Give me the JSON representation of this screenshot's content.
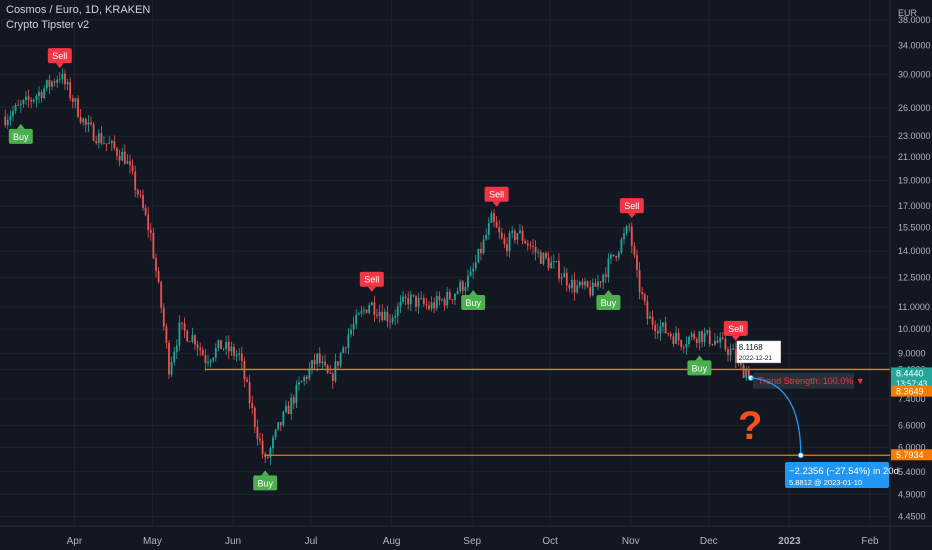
{
  "header": {
    "symbol_line": "Cosmos / Euro, 1D, KRAKEN",
    "indicator_line": "Crypto Tipster v2",
    "currency": "EUR"
  },
  "colors": {
    "background": "#131722",
    "grid": "#1e222d",
    "up": "#26a69a",
    "down": "#ef5350",
    "level_line": "#f57c00",
    "price_tag": "#f57c00",
    "projection": "#2196f3",
    "buy_label": "#4caf50",
    "sell_label": "#f23645",
    "axis_text": "#b2b5be",
    "question_mark": "#f4511e"
  },
  "chart_data": {
    "type": "candlestick",
    "y_scale": "log",
    "ylim": [
      4.2,
      40.0
    ],
    "y_ticks": [
      "38.0000",
      "34.0000",
      "30.0000",
      "26.0000",
      "23.0000",
      "21.0000",
      "19.0000",
      "17.0000",
      "15.5000",
      "14.0000",
      "12.5000",
      "11.0000",
      "10.0000",
      "9.0000",
      "8.4000",
      "7.4000",
      "6.6000",
      "6.0000",
      "5.4000",
      "4.9000",
      "4.4500"
    ],
    "x_labels": [
      "Apr",
      "May",
      "Jun",
      "Jul",
      "Aug",
      "Sep",
      "Oct",
      "Nov",
      "Dec",
      "2023",
      "Feb"
    ],
    "price_path": [
      [
        "2022-03-10",
        25.0
      ],
      [
        "2022-03-18",
        26.5
      ],
      [
        "2022-03-26",
        28.5
      ],
      [
        "2022-03-31",
        30.0
      ],
      [
        "2022-04-05",
        27.0
      ],
      [
        "2022-04-10",
        24.0
      ],
      [
        "2022-04-17",
        22.5
      ],
      [
        "2022-04-25",
        21.0
      ],
      [
        "2022-04-30",
        18.0
      ],
      [
        "2022-05-05",
        15.0
      ],
      [
        "2022-05-09",
        11.0
      ],
      [
        "2022-05-12",
        8.5
      ],
      [
        "2022-05-16",
        10.0
      ],
      [
        "2022-05-22",
        9.6
      ],
      [
        "2022-05-26",
        8.8
      ],
      [
        "2022-06-01",
        9.3
      ],
      [
        "2022-06-08",
        8.9
      ],
      [
        "2022-06-13",
        7.0
      ],
      [
        "2022-06-18",
        5.6
      ],
      [
        "2022-06-23",
        6.5
      ],
      [
        "2022-07-01",
        7.8
      ],
      [
        "2022-07-08",
        8.8
      ],
      [
        "2022-07-13",
        8.0
      ],
      [
        "2022-07-20",
        9.8
      ],
      [
        "2022-07-28",
        11.2
      ],
      [
        "2022-08-05",
        10.5
      ],
      [
        "2022-08-12",
        11.4
      ],
      [
        "2022-08-20",
        11.0
      ],
      [
        "2022-08-28",
        11.5
      ],
      [
        "2022-09-05",
        12.5
      ],
      [
        "2022-09-10",
        14.5
      ],
      [
        "2022-09-13",
        16.0
      ],
      [
        "2022-09-18",
        14.3
      ],
      [
        "2022-09-23",
        15.2
      ],
      [
        "2022-10-01",
        13.8
      ],
      [
        "2022-10-08",
        13.0
      ],
      [
        "2022-10-15",
        12.0
      ],
      [
        "2022-10-22",
        11.8
      ],
      [
        "2022-10-28",
        13.2
      ],
      [
        "2022-11-01",
        14.3
      ],
      [
        "2022-11-05",
        15.5
      ],
      [
        "2022-11-08",
        12.5
      ],
      [
        "2022-11-12",
        10.5
      ],
      [
        "2022-11-18",
        10.0
      ],
      [
        "2022-11-25",
        9.5
      ],
      [
        "2022-12-02",
        9.8
      ],
      [
        "2022-12-08",
        9.5
      ],
      [
        "2022-12-14",
        9.1
      ],
      [
        "2022-12-18",
        8.4
      ],
      [
        "2022-12-21",
        8.35
      ]
    ],
    "horizontal_levels": [
      {
        "price": 8.4,
        "from": "2022-05-26",
        "label": "8.4440"
      },
      {
        "price": 5.8,
        "from": "2022-06-18",
        "label": "5.7934"
      }
    ],
    "signals": [
      {
        "type": "Sell",
        "date": "2022-03-31",
        "price": 30.2
      },
      {
        "type": "Buy",
        "date": "2022-03-16",
        "price": 25.0
      },
      {
        "type": "Sell",
        "date": "2022-07-29",
        "price": 11.5
      },
      {
        "type": "Buy",
        "date": "2022-06-18",
        "price": 5.6
      },
      {
        "type": "Buy",
        "date": "2022-09-06",
        "price": 12.2
      },
      {
        "type": "Sell",
        "date": "2022-09-15",
        "price": 16.6
      },
      {
        "type": "Buy",
        "date": "2022-10-28",
        "price": 12.2
      },
      {
        "type": "Sell",
        "date": "2022-11-06",
        "price": 15.8
      },
      {
        "type": "Buy",
        "date": "2022-12-02",
        "price": 9.2
      },
      {
        "type": "Sell",
        "date": "2022-12-16",
        "price": 9.3
      }
    ],
    "annotations": {
      "price_tooltip": {
        "price": "8.1168",
        "date": "2022-12-21"
      },
      "trend_strength": "Trend Strength: 100.0% ▼",
      "question_mark": "?",
      "projection": {
        "from": {
          "date": "2022-12-21",
          "price": 8.1
        },
        "to": {
          "date": "2023-01-10",
          "price": 5.8812
        },
        "line1": "−2.2356 (−27.54%) in 20d",
        "line2": "5.8812 @ 2023-01-10"
      }
    },
    "price_tags": [
      {
        "label": "8.4440",
        "sub": "13:57:43",
        "color": "#26a69a"
      },
      {
        "label": "8.3649",
        "color": "#f57c00"
      },
      {
        "label": "5.7934",
        "color": "#f57c00"
      }
    ]
  }
}
